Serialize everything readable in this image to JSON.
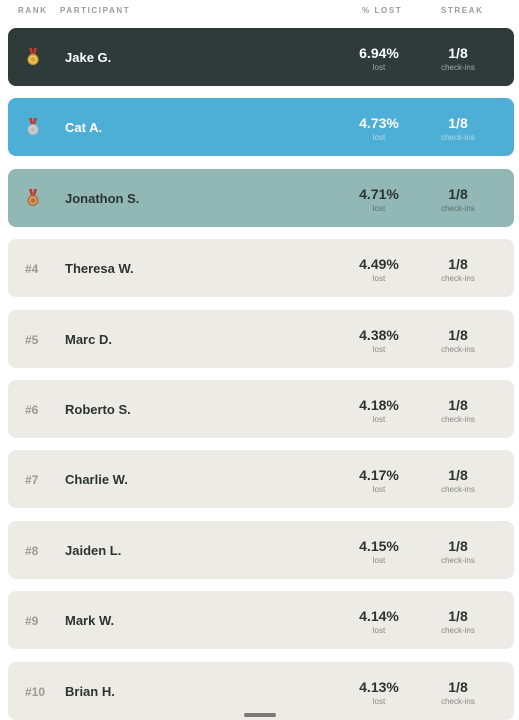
{
  "header": {
    "rank": "RANK",
    "participant": "PARTICIPANT",
    "lost": "% LOST",
    "streak": "STREAK"
  },
  "rows": [
    {
      "medal_color": "#d8a62b",
      "name": "Jake G.",
      "lost": "6.94%",
      "lost_label": "lost",
      "streak": "1/8",
      "streak_label": "check-ins",
      "background": "#2e3b3a",
      "text_color": "#ffffff"
    },
    {
      "medal_color": "#b9bcc2",
      "name": "Cat A.",
      "lost": "4.73%",
      "lost_label": "lost",
      "streak": "1/8",
      "streak_label": "check-ins",
      "background": "#4daed6",
      "text_color": "#ffffff"
    },
    {
      "medal_color": "#b8703a",
      "name": "Jonathon S.",
      "lost": "4.71%",
      "lost_label": "lost",
      "streak": "1/8",
      "streak_label": "check-ins",
      "background": "#91b8b4",
      "text_color": "#2b3433"
    },
    {
      "rank": "#4",
      "name": "Theresa W.",
      "lost": "4.49%",
      "lost_label": "lost",
      "streak": "1/8",
      "streak_label": "check-ins",
      "background": "#edebe6",
      "text_color": "#2b3433"
    },
    {
      "rank": "#5",
      "name": "Marc D.",
      "lost": "4.38%",
      "lost_label": "lost",
      "streak": "1/8",
      "streak_label": "check-ins",
      "background": "#edebe6",
      "text_color": "#2b3433"
    },
    {
      "rank": "#6",
      "name": "Roberto S.",
      "lost": "4.18%",
      "lost_label": "lost",
      "streak": "1/8",
      "streak_label": "check-ins",
      "background": "#edebe6",
      "text_color": "#2b3433"
    },
    {
      "rank": "#7",
      "name": "Charlie W.",
      "lost": "4.17%",
      "lost_label": "lost",
      "streak": "1/8",
      "streak_label": "check-ins",
      "background": "#edebe6",
      "text_color": "#2b3433"
    },
    {
      "rank": "#8",
      "name": "Jaiden L.",
      "lost": "4.15%",
      "lost_label": "lost",
      "streak": "1/8",
      "streak_label": "check-ins",
      "background": "#edebe6",
      "text_color": "#2b3433"
    },
    {
      "rank": "#9",
      "name": "Mark W.",
      "lost": "4.14%",
      "lost_label": "lost",
      "streak": "1/8",
      "streak_label": "check-ins",
      "background": "#edebe6",
      "text_color": "#2b3433"
    },
    {
      "rank": "#10",
      "name": "Brian H.",
      "lost": "4.13%",
      "lost_label": "lost",
      "streak": "1/8",
      "streak_label": "check-ins",
      "background": "#edebe6",
      "text_color": "#2b3433"
    }
  ]
}
